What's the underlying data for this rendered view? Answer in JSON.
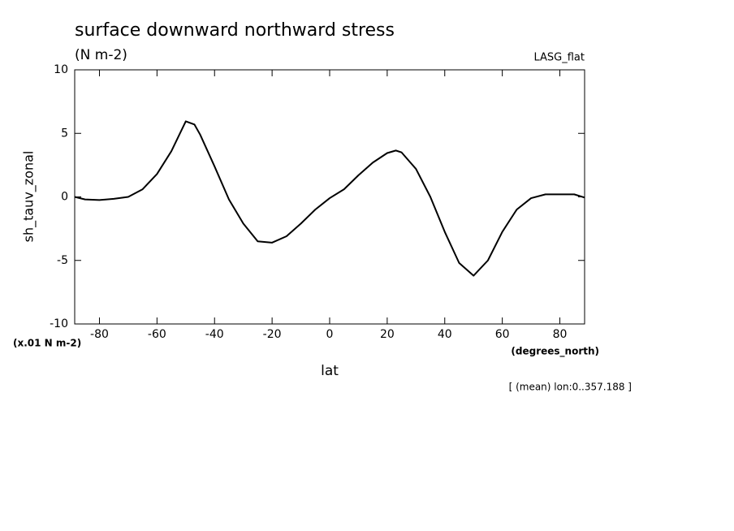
{
  "chart_data": {
    "type": "line",
    "title": "surface downward northward stress",
    "subtitle": "(N m-2)",
    "annotation": "LASG_flat",
    "y_label": "sh_tauv_zonal",
    "y_units": "(x.01 N m-2)",
    "x_units": "(degrees_north)",
    "x_label": "lat",
    "footnote": "[ (mean) lon:0..357.188 ]",
    "x": [
      -88.6,
      -85,
      -80,
      -75,
      -70,
      -65,
      -60,
      -55,
      -50,
      -47,
      -45,
      -40,
      -35,
      -30,
      -25,
      -20,
      -15,
      -10,
      -5,
      0,
      5,
      10,
      15,
      20,
      23,
      25,
      30,
      35,
      40,
      45,
      50,
      55,
      60,
      65,
      70,
      75,
      80,
      85,
      88.6
    ],
    "series": [
      {
        "color": "#000000",
        "values": [
          0,
          -0.2,
          -0.25,
          -0.15,
          0,
          0.6,
          1.8,
          3.6,
          5.95,
          5.7,
          4.9,
          2.4,
          -0.2,
          -2.1,
          -3.5,
          -3.6,
          -3.1,
          -2.1,
          -1.0,
          -0.1,
          0.6,
          1.7,
          2.7,
          3.45,
          3.65,
          3.5,
          2.2,
          0,
          -2.75,
          -5.2,
          -6.2,
          -5.0,
          -2.75,
          -1.0,
          -0.1,
          0.2,
          0.2,
          0.2,
          -0.05
        ]
      }
    ],
    "xlim": [
      -88.6,
      88.6
    ],
    "xticks": [
      -80,
      -60,
      -40,
      -20,
      0,
      20,
      40,
      60,
      80
    ],
    "ylim": [
      -10,
      10
    ],
    "yticks": [
      -10,
      -5,
      0,
      5,
      10
    ]
  }
}
